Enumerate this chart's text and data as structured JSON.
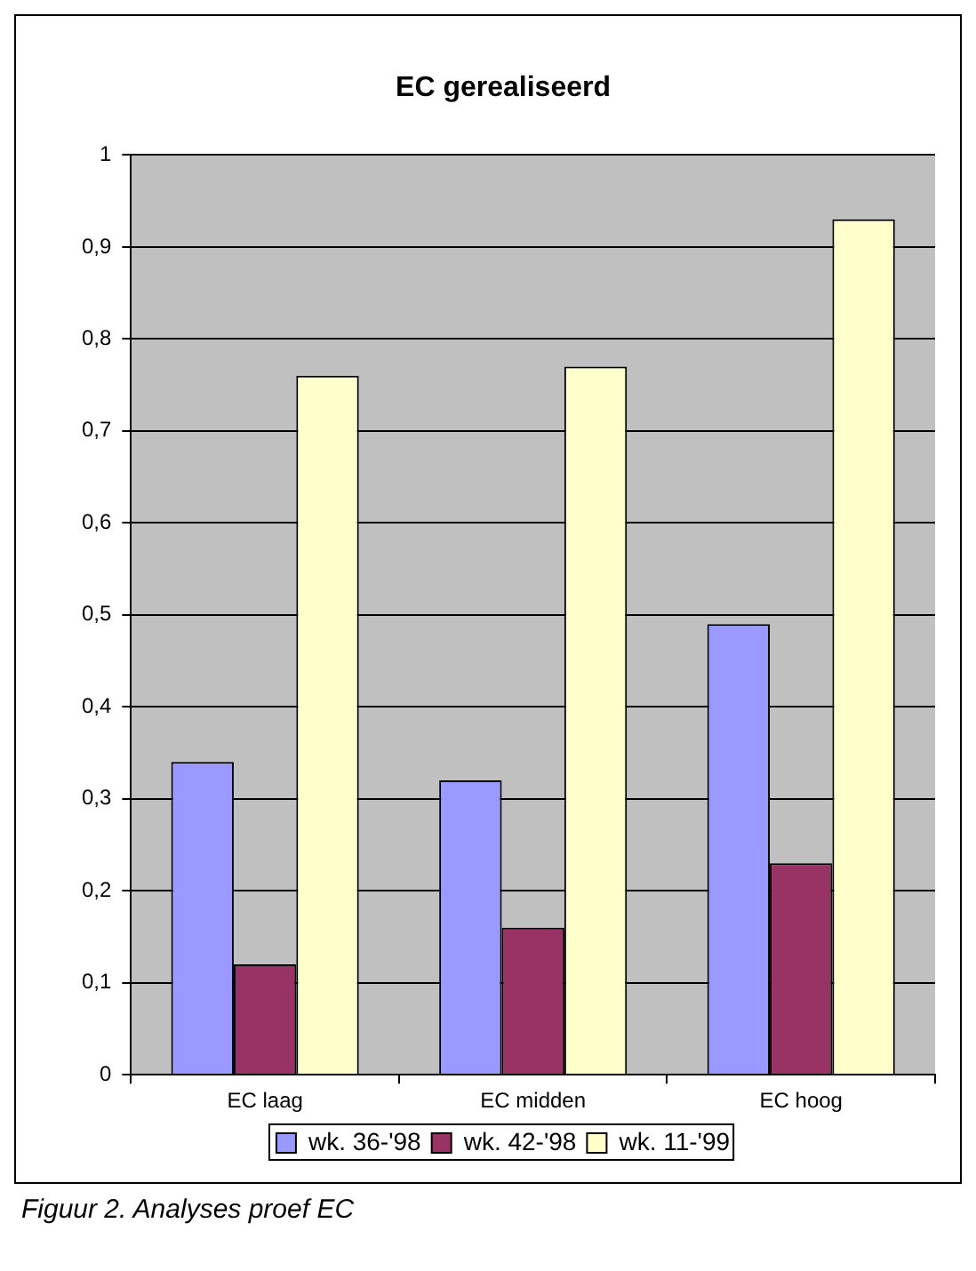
{
  "chart_data": {
    "type": "bar",
    "title": "EC gerealiseerd",
    "categories": [
      "EC laag",
      "EC midden",
      "EC hoog"
    ],
    "series": [
      {
        "name": "wk. 36-'98",
        "color": "#9999ff",
        "values": [
          0.34,
          0.32,
          0.49
        ]
      },
      {
        "name": "wk. 42-'98",
        "color": "#993366",
        "values": [
          0.12,
          0.16,
          0.23
        ]
      },
      {
        "name": "wk. 11-'99",
        "color": "#ffffcc",
        "values": [
          0.76,
          0.77,
          0.93
        ]
      }
    ],
    "ylim": [
      0,
      1
    ],
    "yticks": [
      {
        "value": 0,
        "label": "0"
      },
      {
        "value": 0.1,
        "label": "0,1"
      },
      {
        "value": 0.2,
        "label": "0,2"
      },
      {
        "value": 0.3,
        "label": "0,3"
      },
      {
        "value": 0.4,
        "label": "0,4"
      },
      {
        "value": 0.5,
        "label": "0,5"
      },
      {
        "value": 0.6,
        "label": "0,6"
      },
      {
        "value": 0.7,
        "label": "0,7"
      },
      {
        "value": 0.8,
        "label": "0,8"
      },
      {
        "value": 0.9,
        "label": "0,9"
      },
      {
        "value": 1,
        "label": "1"
      }
    ],
    "grid": "y",
    "legend": "bottom",
    "annotations": [
      "Figuur 2. Analyses proef EC"
    ]
  }
}
